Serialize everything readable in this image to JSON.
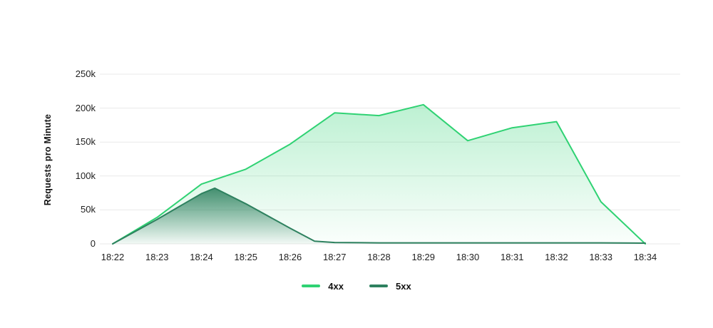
{
  "chart_data": {
    "type": "area",
    "title": "",
    "ylabel": "Requests pro Minute",
    "xlabel": "",
    "x_tick_labels": [
      "18:22",
      "18:23",
      "18:24",
      "18:25",
      "18:26",
      "18:27",
      "18:28",
      "18:29",
      "18:30",
      "18:31",
      "18:32",
      "18:33",
      "18:34"
    ],
    "y_tick_labels": [
      "0",
      "50k",
      "100k",
      "150k",
      "200k",
      "250k"
    ],
    "y_tick_values": [
      0,
      50000,
      100000,
      150000,
      200000,
      250000
    ],
    "ylim": [
      0,
      250000
    ],
    "x_minutes_range": [
      0,
      12
    ],
    "grid": "horizontal-only",
    "legend_position": "bottom-center",
    "series": [
      {
        "name": "4xx",
        "color": "#2fd273",
        "fill_top_opacity": 0.32,
        "fill_bottom_opacity": 0.02,
        "points": [
          [
            0,
            0
          ],
          [
            1,
            39000
          ],
          [
            2,
            88000
          ],
          [
            3,
            110000
          ],
          [
            4,
            147000
          ],
          [
            5,
            193000
          ],
          [
            6,
            189000
          ],
          [
            7,
            205000
          ],
          [
            8,
            152000
          ],
          [
            9,
            171000
          ],
          [
            10,
            180000
          ],
          [
            11,
            62000
          ],
          [
            12,
            0
          ]
        ]
      },
      {
        "name": "5xx",
        "color": "#2e815f",
        "fill_top_opacity": 0.88,
        "fill_bottom_opacity": 0.04,
        "points": [
          [
            0,
            0
          ],
          [
            1,
            36000
          ],
          [
            2,
            74000
          ],
          [
            2.3,
            82000
          ],
          [
            3,
            59000
          ],
          [
            4,
            23000
          ],
          [
            4.55,
            4000
          ],
          [
            5,
            2000
          ],
          [
            6,
            1500
          ],
          [
            7,
            1500
          ],
          [
            8,
            1500
          ],
          [
            9,
            1500
          ],
          [
            10,
            1500
          ],
          [
            11,
            1500
          ],
          [
            12,
            1000
          ]
        ]
      }
    ],
    "colors": {
      "grid": "#e9e9e9",
      "tick_text": "#1f1f1f",
      "background": "#ffffff"
    }
  }
}
